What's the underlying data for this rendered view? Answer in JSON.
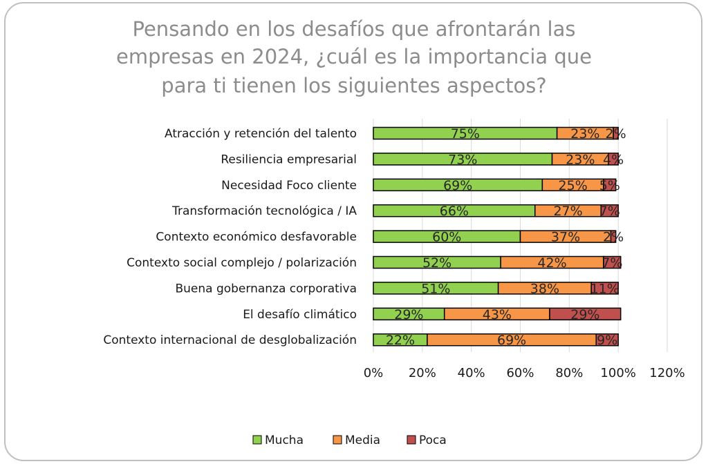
{
  "chart_data": {
    "type": "bar",
    "orientation": "horizontal",
    "stacked": true,
    "title": "Pensando en los desafíos que afrontarán las empresas en 2024, ¿cuál es la importancia que para ti tienen los siguientes aspectos?",
    "title_lines": [
      "Pensando en los desafíos que afrontarán las",
      "empresas en 2024, ¿cuál es la importancia que",
      "para ti tienen los siguientes aspectos?"
    ],
    "categories": [
      "Atracción y retención del talento",
      "Resiliencia empresarial",
      "Necesidad Foco cliente",
      "Transformación tecnológica / IA",
      "Contexto económico desfavorable",
      "Contexto social complejo / polarización",
      "Buena gobernanza corporativa",
      "El desafío climático",
      "Contexto internacional de desglobalización"
    ],
    "series": [
      {
        "name": "Mucha",
        "color": "#92d050",
        "values": [
          75,
          73,
          69,
          66,
          60,
          52,
          51,
          29,
          22
        ],
        "labels": [
          "75%",
          "73%",
          "69%",
          "66%",
          "60%",
          "52%",
          "51%",
          "29%",
          "22%"
        ]
      },
      {
        "name": "Media",
        "color": "#f79646",
        "values": [
          23,
          23,
          25,
          27,
          37,
          42,
          38,
          43,
          69
        ],
        "labels": [
          "23%",
          "23%",
          "25%",
          "27%",
          "37%",
          "42%",
          "38%",
          "43%",
          "69%"
        ]
      },
      {
        "name": "Poca",
        "color": "#c0504d",
        "values": [
          2,
          4,
          5,
          7,
          2,
          7,
          11,
          29,
          9
        ],
        "labels": [
          "2%",
          "4%",
          "5%",
          "7%",
          "2%",
          "7%",
          "11%",
          "29%",
          "9%"
        ]
      }
    ],
    "x_ticks": [
      "0%",
      "20%",
      "40%",
      "60%",
      "80%",
      "100%",
      "120%"
    ],
    "x_tick_values": [
      0,
      20,
      40,
      60,
      80,
      100,
      120
    ],
    "xlim": [
      0,
      120
    ],
    "grid": true,
    "legend": {
      "position": "bottom",
      "entries": [
        "Mucha",
        "Media",
        "Poca"
      ]
    }
  }
}
